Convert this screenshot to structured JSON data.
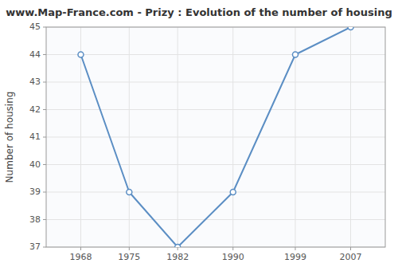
{
  "chart_data": {
    "type": "line",
    "title": "www.Map-France.com - Prizy : Evolution of the number of housing",
    "ylabel": "Number of housing",
    "x": [
      1968,
      1975,
      1982,
      1990,
      1999,
      2007
    ],
    "values": [
      44,
      39,
      37,
      39,
      44,
      45
    ],
    "color": "#5b8ec4",
    "marker": "circle",
    "xlim": [
      1963,
      2012
    ],
    "ylim": [
      37,
      45
    ],
    "xticks": [
      1968,
      1975,
      1982,
      1990,
      1999,
      2007
    ],
    "yticks": [
      37,
      38,
      39,
      40,
      41,
      42,
      43,
      44,
      45
    ],
    "grid": true
  }
}
